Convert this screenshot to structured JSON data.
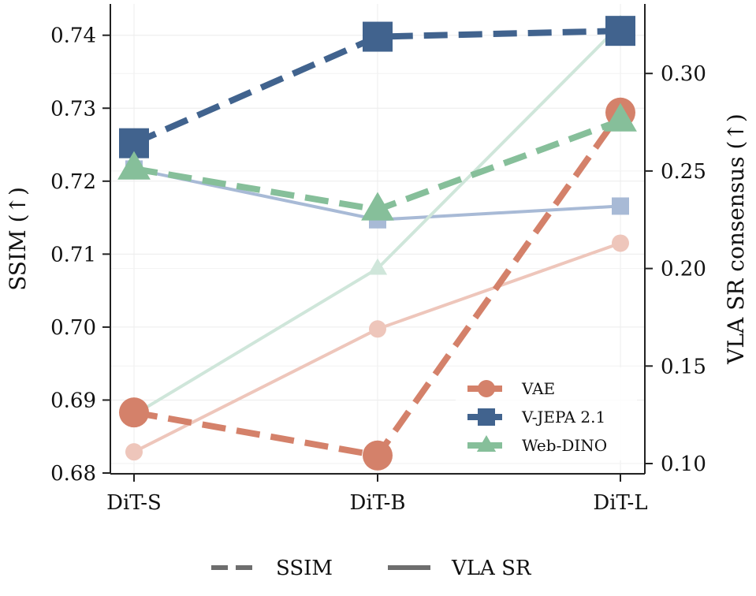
{
  "chart_data": {
    "type": "line",
    "categories": [
      "DiT-S",
      "DiT-B",
      "DiT-L"
    ],
    "left_axis": {
      "label": "SSIM (↑)",
      "ylim": [
        0.68,
        0.743
      ],
      "ticks": [
        "0.68",
        "0.69",
        "0.70",
        "0.71",
        "0.72",
        "0.73",
        "0.74"
      ]
    },
    "right_axis": {
      "label": "VLA SR consensus (↑)",
      "ylim": [
        0.0963,
        0.3315
      ],
      "ticks": [
        "0.10",
        "0.15",
        "0.20",
        "0.25",
        "0.30"
      ]
    },
    "series": [
      {
        "name": "VAE",
        "metric": "SSIM",
        "axis": "left",
        "color": "#d4816a",
        "marker": "circle",
        "values": [
          0.6883,
          0.6824,
          0.7294
        ]
      },
      {
        "name": "V-JEPA 2.1",
        "metric": "SSIM",
        "axis": "left",
        "color": "#41638e",
        "marker": "square",
        "values": [
          0.7252,
          0.7398,
          0.7406
        ]
      },
      {
        "name": "Web-DINO",
        "metric": "SSIM",
        "axis": "left",
        "color": "#86bf9a",
        "marker": "triangle",
        "values": [
          0.7217,
          0.7161,
          0.7283
        ]
      },
      {
        "name": "VAE",
        "metric": "VLA SR",
        "axis": "right",
        "color": "#eec6bb",
        "marker": "circle",
        "values": [
          0.106,
          0.169,
          0.213
        ]
      },
      {
        "name": "V-JEPA 2.1",
        "metric": "VLA SR",
        "axis": "right",
        "color": "#a8bad6",
        "marker": "square",
        "values": [
          0.251,
          0.225,
          0.232
        ]
      },
      {
        "name": "Web-DINO",
        "metric": "VLA SR",
        "axis": "right",
        "color": "#cfe6da",
        "marker": "triangle",
        "values": [
          0.125,
          0.2,
          0.325
        ]
      }
    ],
    "legend": {
      "placement": "lower-right",
      "entries": [
        {
          "name": "VAE",
          "color": "#d4816a",
          "marker": "circle"
        },
        {
          "name": "V-JEPA 2.1",
          "color": "#41638e",
          "marker": "square"
        },
        {
          "name": "Web-DINO",
          "color": "#86bf9a",
          "marker": "triangle"
        }
      ]
    },
    "style_legend": {
      "placement": "bottom-center",
      "color": "#6e6e6e",
      "entries": [
        {
          "label": "SSIM",
          "linestyle": "dashed"
        },
        {
          "label": "VLA SR",
          "linestyle": "solid"
        }
      ]
    },
    "grid": true
  }
}
